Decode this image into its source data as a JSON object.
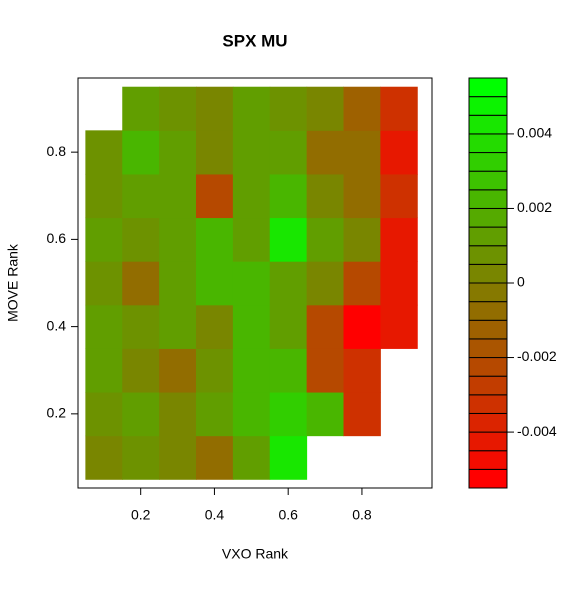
{
  "chart_data": {
    "type": "contour",
    "title": "SPX MU",
    "x_label": "VXO Rank",
    "y_label": "MOVE Rank",
    "x": [
      0.1,
      0.2,
      0.3,
      0.4,
      0.5,
      0.6,
      0.7,
      0.8,
      0.9
    ],
    "y": [
      0.1,
      0.2,
      0.3,
      0.4,
      0.5,
      0.6,
      0.7,
      0.8,
      0.9
    ],
    "z": [
      [
        0.0,
        0.0005,
        0.0,
        -0.001,
        0.001,
        0.004,
        null,
        null,
        null
      ],
      [
        0.0005,
        0.001,
        0.0,
        0.001,
        0.002,
        0.003,
        0.002,
        -0.003,
        null
      ],
      [
        0.001,
        0.0,
        -0.001,
        0.0005,
        0.002,
        0.002,
        -0.002,
        -0.003,
        null
      ],
      [
        0.001,
        0.0005,
        0.001,
        0.0,
        0.002,
        0.001,
        -0.002,
        -0.005,
        -0.004
      ],
      [
        0.0005,
        -0.001,
        0.001,
        0.002,
        0.002,
        0.001,
        0.0,
        -0.002,
        -0.004
      ],
      [
        0.001,
        0.0005,
        0.001,
        0.002,
        0.0015,
        0.004,
        0.001,
        0.0,
        -0.004
      ],
      [
        0.0005,
        0.0015,
        0.001,
        -0.002,
        0.001,
        0.002,
        0.0,
        -0.001,
        -0.003
      ],
      [
        0.0005,
        0.002,
        0.001,
        0.0,
        0.001,
        0.001,
        -0.001,
        -0.001,
        -0.004
      ],
      [
        null,
        0.001,
        0.0005,
        0.0,
        0.001,
        0.0005,
        0.0,
        -0.0015,
        -0.003
      ]
    ],
    "xlim": [
      0.03,
      0.99
    ],
    "ylim": [
      0.03,
      0.97
    ],
    "xticks": [
      0.2,
      0.4,
      0.6,
      0.8
    ],
    "yticks": [
      0.2,
      0.4,
      0.6,
      0.8
    ],
    "zlim": [
      -0.0055,
      0.0055
    ],
    "zstep": 0.0005,
    "zticks": [
      -0.004,
      -0.002,
      0.0,
      0.002,
      0.004
    ],
    "low_color": "#ff0000",
    "high_color": "#00ff00"
  }
}
